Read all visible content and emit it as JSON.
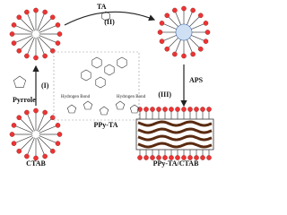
{
  "arrows": {
    "top": {
      "reagent": "TA",
      "step": "(II)"
    },
    "right": {
      "reagent": "APS",
      "step": "(III)"
    },
    "left": {
      "step": "(I)"
    }
  },
  "labels": {
    "pyrrole": "Pyrrole",
    "ctab": "CTAB",
    "product": "PPy-TA/CTAB",
    "molecule": "PPy-TA",
    "hbond_left": "Hydrogen Bond",
    "hbond_right": "Hydrogen Bond"
  }
}
